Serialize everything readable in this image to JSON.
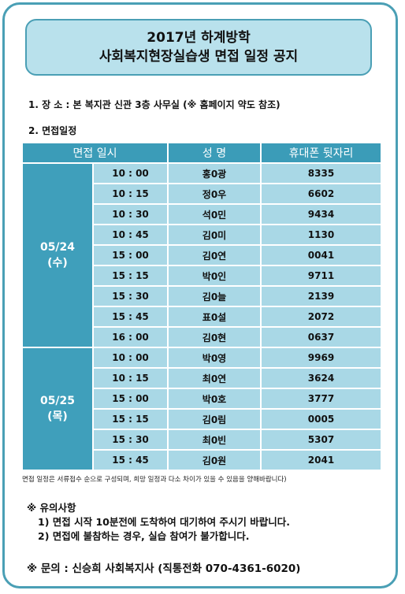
{
  "header": {
    "title_lines": [
      "2017년 하계방학",
      "사회복지현장실습생 면접 일정 공지"
    ]
  },
  "location": "1. 장 소 : 본 복지관 신관 3층 사무실 (※ 홈페이지 약도 참조)",
  "schedule_label": "2. 면접일정",
  "table": {
    "headers": [
      "면접 일시",
      "성 명",
      "휴대폰 뒷자리"
    ],
    "groups": [
      {
        "date": "05/24",
        "day": "(수)",
        "rows": [
          [
            "10 : 00",
            "홍0광",
            "8335"
          ],
          [
            "10 : 15",
            "정0우",
            "6602"
          ],
          [
            "10 : 30",
            "석0민",
            "9434"
          ],
          [
            "10 : 45",
            "김0미",
            "1130"
          ],
          [
            "15 : 00",
            "김0연",
            "0041"
          ],
          [
            "15 : 15",
            "박0인",
            "9711"
          ],
          [
            "15 : 30",
            "김0늘",
            "2139"
          ],
          [
            "15 : 45",
            "표0설",
            "2072"
          ],
          [
            "16 : 00",
            "김0현",
            "0637"
          ]
        ]
      },
      {
        "date": "05/25",
        "day": "(목)",
        "rows": [
          [
            "10 : 00",
            "박0영",
            "9969"
          ],
          [
            "10 : 15",
            "최0연",
            "3624"
          ],
          [
            "15 : 00",
            "박0호",
            "3777"
          ],
          [
            "15 : 15",
            "김0림",
            "0005"
          ],
          [
            "15 : 30",
            "최0빈",
            "5307"
          ],
          [
            "15 : 45",
            "김0원",
            "2041"
          ]
        ]
      }
    ]
  },
  "footnote": "면접 일정은 서류접수 순으로 구성되며, 희망 일정과 다소 차이가 있을 수 있음을 양해바랍니다)",
  "notes": {
    "title": "※ 유의사항",
    "items": [
      "1) 면접 시작 10분전에 도착하여 대기하여 주시기 바랍니다.",
      "2) 면접에 불참하는 경우, 실습 참여가 불가합니다."
    ]
  },
  "contact": "※ 문의 : 신승희 사회복지사 (직통전화 070-4361-6020)"
}
